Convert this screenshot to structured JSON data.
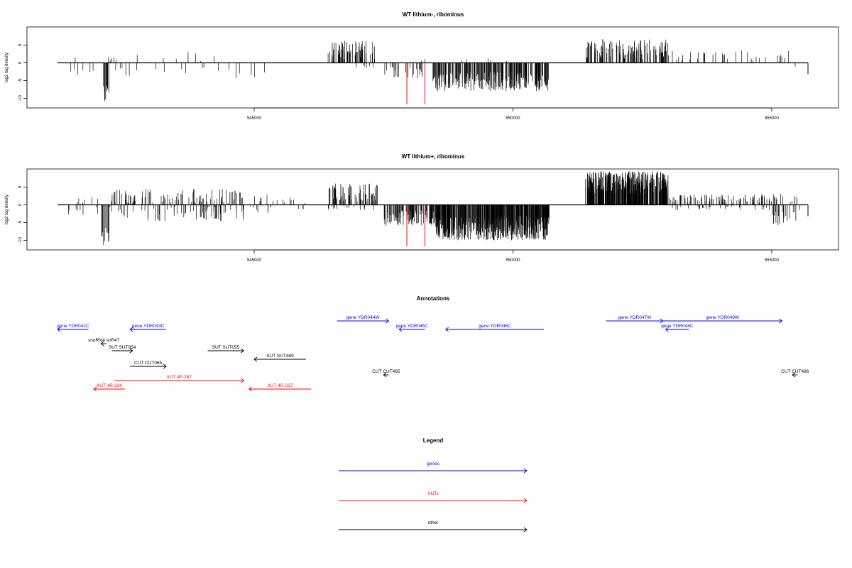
{
  "chart_data": [
    {
      "type": "bar",
      "title": "WT lithium-, ribominus",
      "ylabel": "log2 tag density",
      "xlabel": "",
      "xlim": [
        541200,
        555700
      ],
      "ylim": [
        -12,
        10
      ],
      "x_ticks": [
        "545000",
        "550000",
        "555000"
      ],
      "y_ticks": [
        "-10",
        "-5",
        "0",
        "5"
      ],
      "signal_segments": [
        {
          "from": 541300,
          "to": 542700,
          "sign": 1,
          "density": 0.06,
          "min": 0.5,
          "max": 1.6
        },
        {
          "from": 541300,
          "to": 542700,
          "sign": -1,
          "density": 0.12,
          "min": 1.0,
          "max": 4.0
        },
        {
          "from": 542050,
          "to": 542200,
          "sign": -1,
          "density": 1.2,
          "min": 6.0,
          "max": 11.0
        },
        {
          "from": 542700,
          "to": 544600,
          "sign": 1,
          "density": 0.05,
          "min": 0.5,
          "max": 3.5
        },
        {
          "from": 542700,
          "to": 544700,
          "sign": -1,
          "density": 0.06,
          "min": 0.5,
          "max": 3.0
        },
        {
          "from": 544600,
          "to": 545200,
          "sign": -1,
          "density": 0.12,
          "min": 1.0,
          "max": 4.5
        },
        {
          "from": 546420,
          "to": 547350,
          "sign": 1,
          "density": 0.9,
          "min": 1.0,
          "max": 6.2
        },
        {
          "from": 546800,
          "to": 547350,
          "sign": -1,
          "density": 0.15,
          "min": 0.5,
          "max": 1.5
        },
        {
          "from": 547500,
          "to": 548400,
          "sign": -1,
          "density": 0.35,
          "min": 1.0,
          "max": 4.5
        },
        {
          "from": 548150,
          "to": 548400,
          "sign": 1,
          "density": 0.1,
          "min": 0.5,
          "max": 1.5
        },
        {
          "from": 548450,
          "to": 550700,
          "sign": -1,
          "density": 1.5,
          "min": 2.5,
          "max": 8.0
        },
        {
          "from": 549000,
          "to": 550200,
          "sign": 1,
          "density": 0.06,
          "min": 0.5,
          "max": 1.5
        },
        {
          "from": 551400,
          "to": 553000,
          "sign": 1,
          "density": 1.0,
          "min": 1.0,
          "max": 6.8
        },
        {
          "from": 553000,
          "to": 555400,
          "sign": 1,
          "density": 0.2,
          "min": 0.5,
          "max": 3.5
        },
        {
          "from": 555100,
          "to": 555500,
          "sign": -1,
          "density": 0.05,
          "min": 1.0,
          "max": 3.5
        }
      ],
      "highlight_x": [
        547950,
        548300
      ]
    },
    {
      "type": "bar",
      "title": "WT lithium+, ribominus",
      "ylabel": "log2 tag density",
      "xlabel": "",
      "xlim": [
        541200,
        555700
      ],
      "ylim": [
        -12,
        10
      ],
      "x_ticks": [
        "545000",
        "550000",
        "555000"
      ],
      "y_ticks": [
        "-10",
        "-5",
        "0",
        "5"
      ],
      "signal_segments": [
        {
          "from": 541300,
          "to": 542000,
          "sign": 1,
          "density": 0.12,
          "min": 0.5,
          "max": 2.5
        },
        {
          "from": 541300,
          "to": 542000,
          "sign": -1,
          "density": 0.15,
          "min": 0.5,
          "max": 3.0
        },
        {
          "from": 542050,
          "to": 542200,
          "sign": -1,
          "density": 1.5,
          "min": 6.0,
          "max": 11.5
        },
        {
          "from": 542200,
          "to": 544800,
          "sign": 1,
          "density": 0.5,
          "min": 0.5,
          "max": 4.5
        },
        {
          "from": 542200,
          "to": 544800,
          "sign": -1,
          "density": 0.35,
          "min": 0.5,
          "max": 5.0
        },
        {
          "from": 544800,
          "to": 546000,
          "sign": 1,
          "density": 0.15,
          "min": 0.5,
          "max": 3.0
        },
        {
          "from": 544800,
          "to": 546000,
          "sign": -1,
          "density": 0.12,
          "min": 0.5,
          "max": 2.5
        },
        {
          "from": 546400,
          "to": 547400,
          "sign": 1,
          "density": 0.9,
          "min": 1.0,
          "max": 6.0
        },
        {
          "from": 546400,
          "to": 547400,
          "sign": -1,
          "density": 0.2,
          "min": 0.5,
          "max": 1.5
        },
        {
          "from": 547500,
          "to": 548500,
          "sign": -1,
          "density": 1.3,
          "min": 1.5,
          "max": 6.0
        },
        {
          "from": 548500,
          "to": 550700,
          "sign": -1,
          "density": 3.0,
          "min": 3.0,
          "max": 10.0
        },
        {
          "from": 551400,
          "to": 553000,
          "sign": 1,
          "density": 3.0,
          "min": 3.0,
          "max": 9.5
        },
        {
          "from": 553000,
          "to": 555000,
          "sign": 1,
          "density": 0.6,
          "min": 0.5,
          "max": 3.0
        },
        {
          "from": 553000,
          "to": 555000,
          "sign": -1,
          "density": 0.2,
          "min": 0.5,
          "max": 1.5
        },
        {
          "from": 555000,
          "to": 555600,
          "sign": 1,
          "density": 0.3,
          "min": 0.5,
          "max": 3.5
        },
        {
          "from": 555000,
          "to": 555600,
          "sign": -1,
          "density": 0.5,
          "min": 1.0,
          "max": 6.0
        }
      ],
      "highlight_x": [
        547950,
        548300
      ]
    }
  ],
  "annotations": {
    "title": "Annotations",
    "features": [
      {
        "label": "gene YDR042C",
        "kind": "gene",
        "start": 541200,
        "end": 541800,
        "strand": "-",
        "row": 1
      },
      {
        "label": "gene YDR043C",
        "kind": "gene",
        "start": 542600,
        "end": 543300,
        "strand": "-",
        "row": 1
      },
      {
        "label": "gene YDR044W",
        "kind": "gene",
        "start": 546600,
        "end": 547600,
        "strand": "+",
        "row": 0
      },
      {
        "label": "gene YDR045C",
        "kind": "gene",
        "start": 547800,
        "end": 548300,
        "strand": "-",
        "row": 1
      },
      {
        "label": "gene YDR046C",
        "kind": "gene",
        "start": 548700,
        "end": 550600,
        "strand": "-",
        "row": 1
      },
      {
        "label": "gene YDR047W",
        "kind": "gene",
        "start": 551800,
        "end": 552900,
        "strand": "+",
        "row": 0
      },
      {
        "label": "gene YDR048C",
        "kind": "gene",
        "start": 552950,
        "end": 553400,
        "strand": "-",
        "row": 1
      },
      {
        "label": "gene YDR049W",
        "kind": "gene",
        "start": 552900,
        "end": 555200,
        "strand": "+",
        "row": 0
      },
      {
        "label": "snoRNA snR47",
        "kind": "other",
        "start": 542040,
        "end": 542150,
        "strand": "-",
        "row": 2
      },
      {
        "label": "SUT SUT054",
        "kind": "other",
        "start": 542250,
        "end": 542650,
        "strand": "+",
        "row": 3
      },
      {
        "label": "SUT SUT055",
        "kind": "other",
        "start": 544100,
        "end": 544800,
        "strand": "+",
        "row": 3
      },
      {
        "label": "SUT SUT469",
        "kind": "other",
        "start": 545000,
        "end": 546000,
        "strand": "-",
        "row": 4
      },
      {
        "label": "CUT CUT065",
        "kind": "other",
        "start": 542600,
        "end": 543300,
        "strand": "+",
        "row": 5
      },
      {
        "label": "CUT CUT495",
        "kind": "other",
        "start": 547500,
        "end": 547600,
        "strand": "-",
        "row": 6
      },
      {
        "label": "CUT CUT496",
        "kind": "other",
        "start": 555400,
        "end": 555500,
        "strand": "-",
        "row": 6
      },
      {
        "label": "XUT 4F-267",
        "kind": "xut",
        "start": 542300,
        "end": 544800,
        "strand": "+",
        "row": 7
      },
      {
        "label": "XUT 4R-234",
        "kind": "xut",
        "start": 541900,
        "end": 542500,
        "strand": "-",
        "row": 8
      },
      {
        "label": "XUT 4R-237",
        "kind": "xut",
        "start": 544900,
        "end": 546100,
        "strand": "-",
        "row": 8
      }
    ]
  },
  "legend": {
    "title": "Legend",
    "items": [
      {
        "label": "genes",
        "color": "#0000ff"
      },
      {
        "label": "XUTs",
        "color": "#ff0000"
      },
      {
        "label": "other",
        "color": "#000000"
      }
    ]
  },
  "colors": {
    "gene": "#0000ff",
    "xut": "#ff0000",
    "other": "#000000",
    "highlight": "#ff0000"
  }
}
